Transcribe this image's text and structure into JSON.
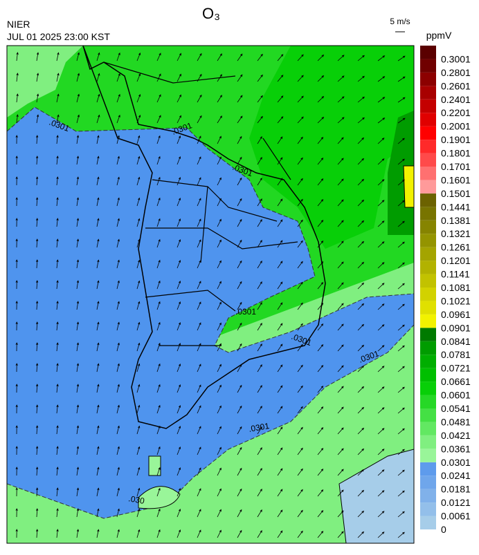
{
  "title": "O₃",
  "agency": "NIER",
  "timestamp": "JUL 01 2025 23:00 KST",
  "wind_reference": "5 m/s",
  "colorbar": {
    "unit": "ppmV",
    "levels": [
      0,
      0.0061,
      0.0121,
      0.0181,
      0.0241,
      0.0301,
      0.0361,
      0.0421,
      0.0481,
      0.0541,
      0.0601,
      0.0661,
      0.0721,
      0.0781,
      0.0841,
      0.0901,
      0.0961,
      0.1021,
      0.1081,
      0.1141,
      0.1201,
      0.1261,
      0.1321,
      0.1381,
      0.1441,
      0.1501,
      0.1601,
      0.1701,
      0.1801,
      0.1901,
      0.2001,
      0.2201,
      0.2401,
      0.2601,
      0.2801,
      0.3001
    ],
    "colors": [
      "#a6cde9",
      "#93bfea",
      "#80b1ea",
      "#6fa6eb",
      "#5e9bec",
      "#99f599",
      "#80ef80",
      "#62e862",
      "#44e044",
      "#26d826",
      "#08cf08",
      "#00bf00",
      "#00ae00",
      "#009c00",
      "#007a00",
      "#f2f200",
      "#e0e000",
      "#d2d200",
      "#c2c200",
      "#b2b200",
      "#a4a400",
      "#949400",
      "#868400",
      "#787400",
      "#6c6200",
      "#ff9a9a",
      "#ff7070",
      "#ff4a4a",
      "#ff2a2a",
      "#ff0000",
      "#e00000",
      "#c40000",
      "#a80000",
      "#8c0000",
      "#700000",
      "#5a0000"
    ]
  },
  "contour_labels": [
    ".0301",
    ".0301",
    ".0301",
    ".0301",
    ".0301",
    ".0301",
    ".0301",
    ".030"
  ]
}
